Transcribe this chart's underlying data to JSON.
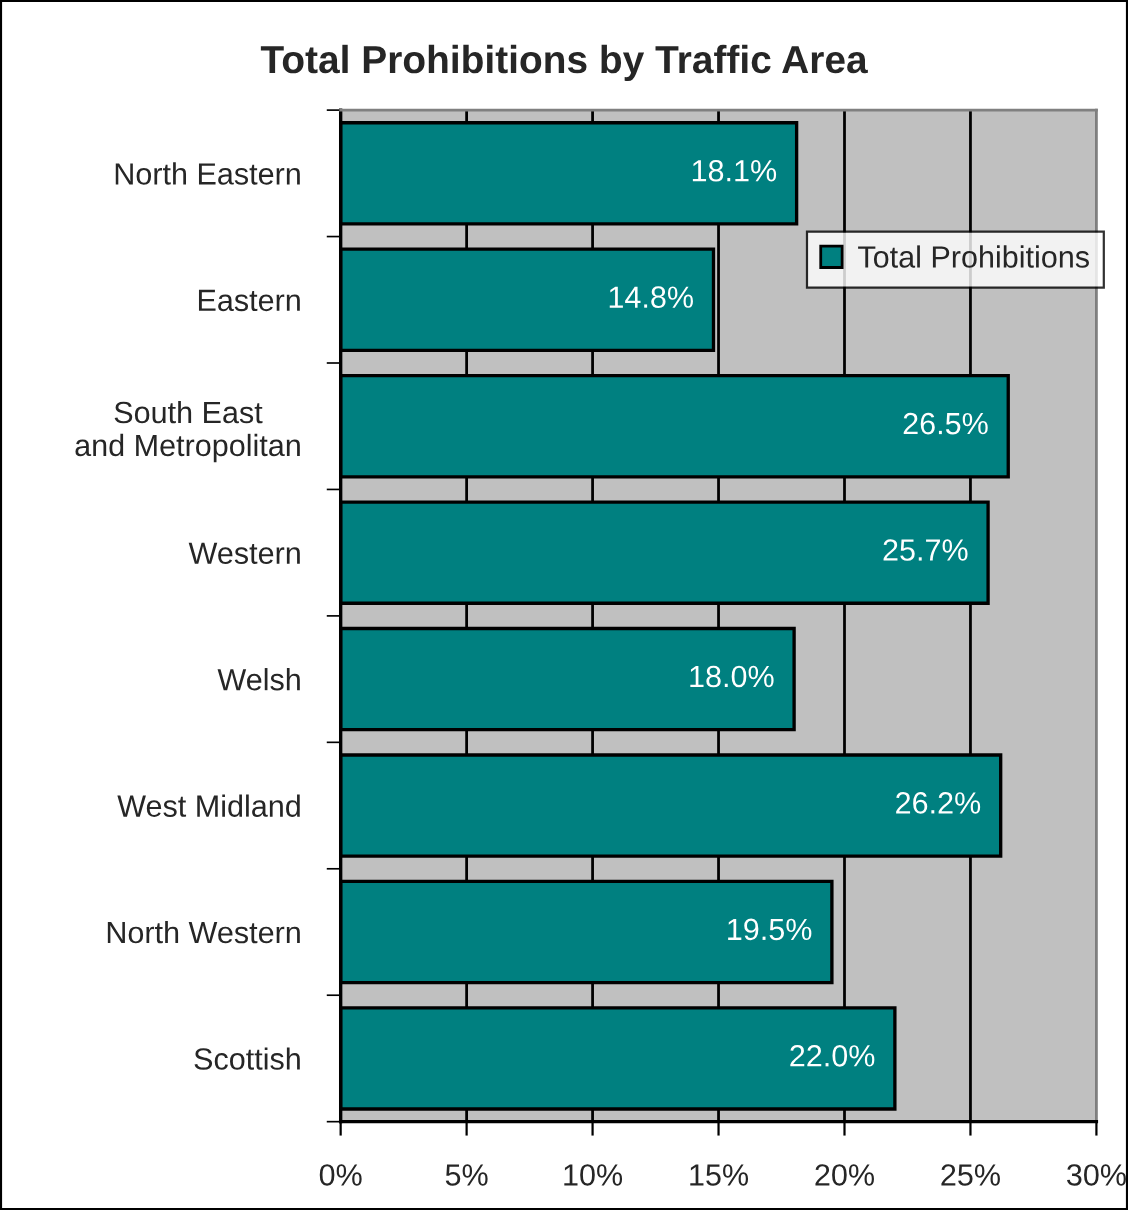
{
  "chart_data": {
    "type": "bar",
    "orientation": "horizontal",
    "title": "Total Prohibitions by Traffic Area",
    "categories": [
      "North Eastern",
      "Eastern",
      "South East\nand Metropolitan",
      "Western",
      "Welsh",
      "West Midland",
      "North Western",
      "Scottish"
    ],
    "series": [
      {
        "name": "Total Prohibitions",
        "color": "#008080",
        "values": [
          18.1,
          14.8,
          26.5,
          25.7,
          18.0,
          26.2,
          19.5,
          22.0
        ],
        "value_labels": [
          "18.1%",
          "14.8%",
          "26.5%",
          "25.7%",
          "18.0%",
          "26.2%",
          "19.5%",
          "22.0%"
        ]
      }
    ],
    "xlim": [
      0,
      30
    ],
    "xticks": [
      {
        "value": 0,
        "label": "0%"
      },
      {
        "value": 5,
        "label": "5%"
      },
      {
        "value": 10,
        "label": "10%"
      },
      {
        "value": 15,
        "label": "15%"
      },
      {
        "value": 20,
        "label": "20%"
      },
      {
        "value": 25,
        "label": "25%"
      },
      {
        "value": 30,
        "label": "30%"
      }
    ],
    "grid": "x",
    "legend": "top right"
  }
}
